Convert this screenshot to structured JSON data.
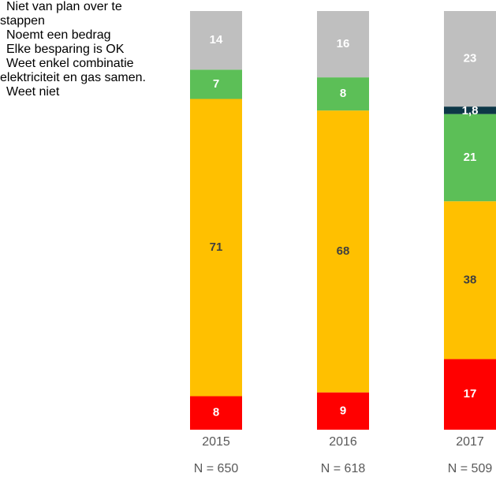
{
  "chart_data": {
    "type": "bar",
    "stacked": "percent",
    "categories": [
      "2015",
      "2016",
      "2017"
    ],
    "sample_sizes": [
      "N = 650",
      "N = 618",
      "N = 509"
    ],
    "series": [
      {
        "name": "Niet van plan over te stappen",
        "color": "#ff0000",
        "label_color": "#ffffff",
        "values": [
          8,
          9,
          17
        ]
      },
      {
        "name": "Noemt een bedrag",
        "color": "#ffc000",
        "label_color": "#404040",
        "values": [
          71,
          68,
          38
        ]
      },
      {
        "name": "Elke besparing is OK",
        "color": "#5cbf57",
        "label_color": "#ffffff",
        "values": [
          7,
          8,
          21
        ]
      },
      {
        "name": "Weet enkel combinatie elektriciteit en gas samen.",
        "color": "#0d3747",
        "label_color": "#ffffff",
        "values": [
          null,
          null,
          1.8
        ],
        "value_labels": [
          null,
          null,
          "1,8"
        ]
      },
      {
        "name": "Weet niet",
        "color": "#bfbfbf",
        "label_color": "#ffffff",
        "values": [
          14,
          16,
          23
        ]
      }
    ],
    "legend": "left"
  }
}
